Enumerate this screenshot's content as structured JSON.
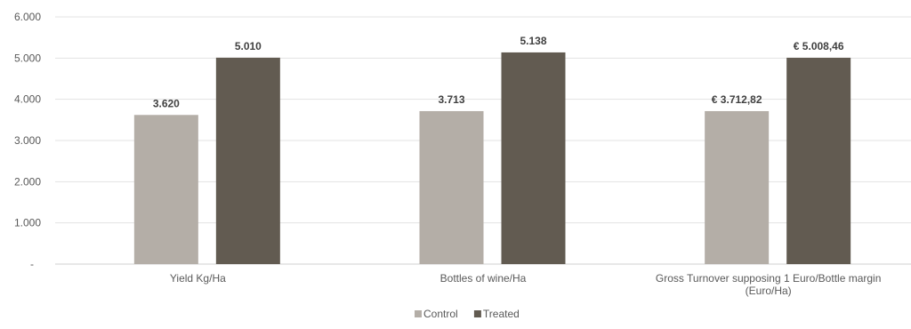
{
  "chart_data": {
    "type": "bar",
    "title": "",
    "xlabel": "",
    "ylabel": "",
    "ylim": [
      0,
      6000
    ],
    "yticks": [
      "-",
      "1.000",
      "2.000",
      "3.000",
      "4.000",
      "5.000",
      "6.000"
    ],
    "grid": true,
    "legend_position": "bottom",
    "categories": [
      "Yield Kg/Ha",
      "Bottles of wine/Ha",
      [
        "Gross Turnover supposing 1  Euro/Bottle margin",
        "(Euro/Ha)"
      ]
    ],
    "series": [
      {
        "name": "Control",
        "color": "#b4aea7",
        "values": [
          3620,
          3713,
          3712.82
        ],
        "labels": [
          "3.620",
          "3.713",
          "€ 3.712,82"
        ]
      },
      {
        "name": "Treated",
        "color": "#625b51",
        "values": [
          5010,
          5138,
          5008.46
        ],
        "labels": [
          "5.010",
          "5.138",
          "€ 5.008,46"
        ]
      }
    ]
  }
}
